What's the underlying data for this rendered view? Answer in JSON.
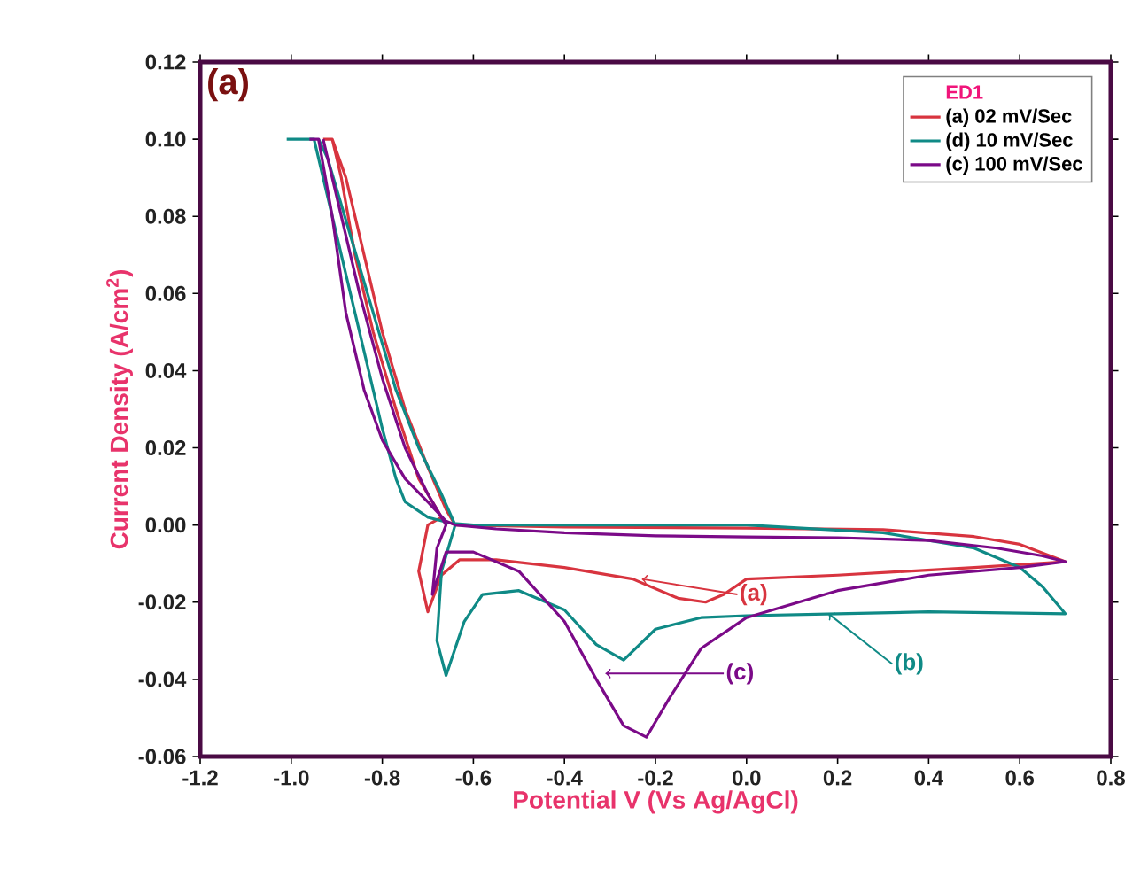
{
  "chart_data": {
    "type": "line",
    "xlabel": "Potential V (Vs Ag/AgCl)",
    "ylabel": "Current Density (A/cm$^{2}$)",
    "legend_title": "ED1",
    "legend": "top right",
    "grid": false,
    "marker": "none",
    "line_style": "solid",
    "annotations": [
      "(a)",
      {
        "text": "(a)",
        "x": -0.23,
        "y": -0.014
      },
      {
        "text": "(b)",
        "x": 0.18,
        "y": -0.023
      },
      {
        "text": "(c)",
        "x": -0.31,
        "y": -0.0385
      }
    ],
    "xlim": [
      -1.2,
      0.8
    ],
    "ylim": [
      -0.06,
      0.12
    ],
    "xticks": [
      -1.2,
      {
        "value": -1.0,
        "label": "-1.0"
      },
      -0.8,
      -0.6,
      -0.4,
      -0.2,
      {
        "value": 0,
        "label": "0.0"
      },
      0.2,
      0.4,
      0.6,
      0.8
    ],
    "yticks": [
      -0.06,
      -0.04,
      -0.02,
      {
        "value": 0,
        "label": "0.00"
      },
      0.02,
      0.04,
      0.06,
      0.08,
      {
        "value": 0.1,
        "label": "0.10"
      },
      0.12
    ],
    "series": [
      {
        "name": "(a) 02 mV/Sec",
        "color": "#d8343f",
        "x": [
          -0.93,
          -0.91,
          -0.88,
          -0.84,
          -0.8,
          -0.75,
          -0.7,
          -0.66,
          -0.64,
          -0.4,
          0,
          0.3,
          0.5,
          0.6,
          0.7,
          0.5,
          0.2,
          0,
          -0.05,
          -0.09,
          -0.15,
          -0.25,
          -0.4,
          -0.55,
          -0.63,
          -0.67,
          -0.7,
          -0.72,
          -0.7,
          -0.67,
          -0.72,
          -0.77,
          -0.82,
          -0.86,
          -0.89,
          -0.91
        ],
        "values": [
          0.1,
          0.1,
          0.09,
          0.07,
          0.05,
          0.03,
          0.015,
          0.004,
          0,
          -0.0005,
          -0.0008,
          -0.0012,
          -0.003,
          -0.005,
          -0.0095,
          -0.011,
          -0.013,
          -0.014,
          -0.018,
          -0.02,
          -0.019,
          -0.014,
          -0.011,
          -0.009,
          -0.009,
          -0.013,
          -0.0225,
          -0.012,
          0.0,
          0.002,
          0.012,
          0.03,
          0.05,
          0.07,
          0.09,
          0.1
        ]
      },
      {
        "name": "(d) 10 mV/Sec",
        "color": "#0f8a86",
        "x": [
          -1.01,
          -0.95,
          -0.92,
          -0.88,
          -0.84,
          -0.8,
          -0.77,
          -0.75,
          -0.7,
          -0.65,
          -0.6,
          0,
          0.3,
          0.5,
          0.6,
          0.65,
          0.7,
          0.4,
          0.2,
          0,
          -0.1,
          -0.2,
          -0.27,
          -0.33,
          -0.4,
          -0.5,
          -0.58,
          -0.62,
          -0.66,
          -0.68,
          -0.67,
          -0.64,
          -0.67,
          -0.72,
          -0.77,
          -0.82,
          -0.87,
          -0.92,
          -0.94
        ],
        "values": [
          0.1,
          0.1,
          0.085,
          0.065,
          0.045,
          0.025,
          0.012,
          0.006,
          0.002,
          0.0005,
          0,
          0,
          -0.002,
          -0.006,
          -0.011,
          -0.016,
          -0.023,
          -0.0225,
          -0.023,
          -0.0235,
          -0.024,
          -0.027,
          -0.035,
          -0.031,
          -0.022,
          -0.017,
          -0.018,
          -0.025,
          -0.039,
          -0.03,
          -0.012,
          0,
          0.008,
          0.02,
          0.035,
          0.055,
          0.075,
          0.095,
          0.1
        ]
      },
      {
        "name": "(c) 100 mV/Sec",
        "color": "#7b0a88",
        "x": [
          -0.96,
          -0.94,
          -0.91,
          -0.88,
          -0.84,
          -0.8,
          -0.75,
          -0.7,
          -0.66,
          -0.64,
          -0.55,
          -0.4,
          -0.2,
          0,
          0.2,
          0.4,
          0.55,
          0.65,
          0.7,
          0.6,
          0.4,
          0.2,
          0,
          -0.1,
          -0.17,
          -0.22,
          -0.27,
          -0.33,
          -0.4,
          -0.5,
          -0.6,
          -0.66,
          -0.69,
          -0.68,
          -0.66,
          -0.7,
          -0.75,
          -0.8,
          -0.85,
          -0.9,
          -0.93
        ],
        "values": [
          0.1,
          0.1,
          0.08,
          0.055,
          0.035,
          0.022,
          0.012,
          0.006,
          0.001,
          0,
          -0.001,
          -0.002,
          -0.0028,
          -0.0031,
          -0.0033,
          -0.004,
          -0.006,
          -0.008,
          -0.0095,
          -0.011,
          -0.013,
          -0.017,
          -0.024,
          -0.032,
          -0.045,
          -0.055,
          -0.052,
          -0.04,
          -0.025,
          -0.012,
          -0.007,
          -0.007,
          -0.018,
          -0.006,
          0,
          0.008,
          0.02,
          0.038,
          0.06,
          0.085,
          0.1
        ]
      }
    ]
  }
}
